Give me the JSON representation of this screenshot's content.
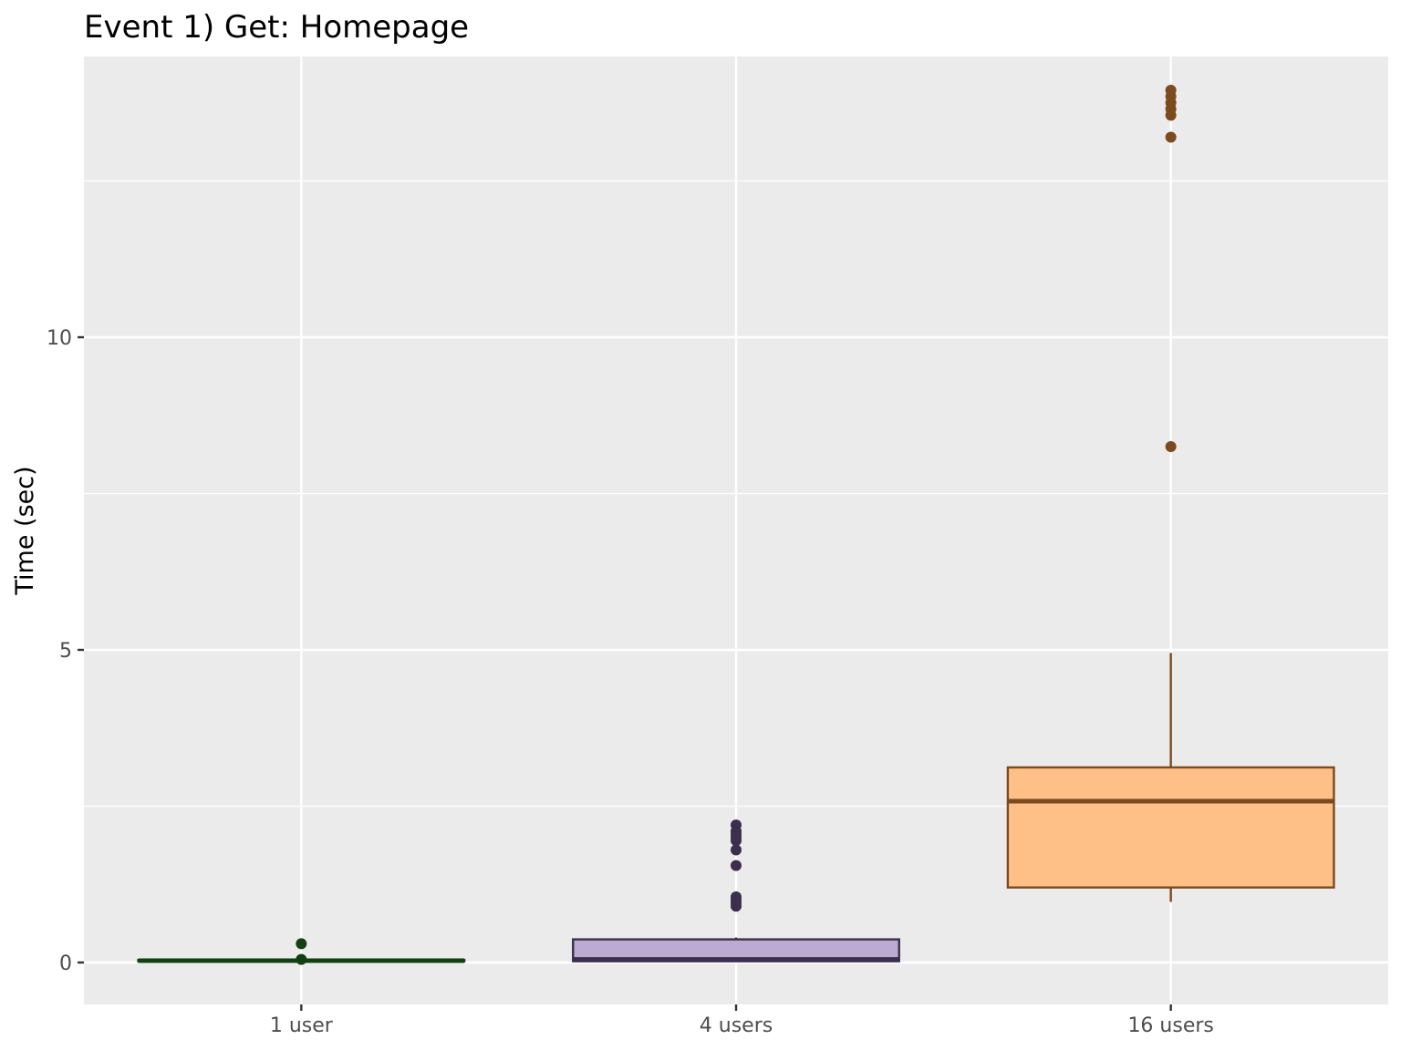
{
  "chart_data": {
    "type": "boxplot",
    "title": "Event 1) Get: Homepage",
    "xlabel": "",
    "ylabel": "Time (sec)",
    "ylim": [
      -0.68,
      14.5
    ],
    "y_ticks": [
      0,
      5,
      10
    ],
    "grid": true,
    "legend": "none",
    "categories": [
      "1 user",
      "4 users",
      "16 users"
    ],
    "boxes": [
      {
        "category": "1 user",
        "q1": 0.02,
        "median": 0.03,
        "q3": 0.04,
        "whisker_low": 0.01,
        "whisker_high": 0.05,
        "outliers": [
          0.3,
          0.05
        ],
        "fill": "#1a4d1a",
        "stroke": "#124012"
      },
      {
        "category": "4 users",
        "q1": 0.02,
        "median": 0.05,
        "q3": 0.37,
        "whisker_low": 0.01,
        "whisker_high": 0.4,
        "outliers": [
          0.9,
          0.95,
          1.0,
          1.05,
          1.55,
          1.8,
          1.95,
          2.0,
          2.05,
          2.1,
          2.2
        ],
        "fill": "#bcaad0",
        "stroke": "#3b2f4d"
      },
      {
        "category": "16 users",
        "q1": 1.2,
        "median": 2.58,
        "q3": 3.12,
        "whisker_low": 0.97,
        "whisker_high": 4.95,
        "outliers": [
          8.25,
          13.2,
          13.55,
          13.65,
          13.75,
          13.85,
          13.95
        ],
        "fill": "#fec087",
        "stroke": "#7b4a1e"
      }
    ]
  }
}
